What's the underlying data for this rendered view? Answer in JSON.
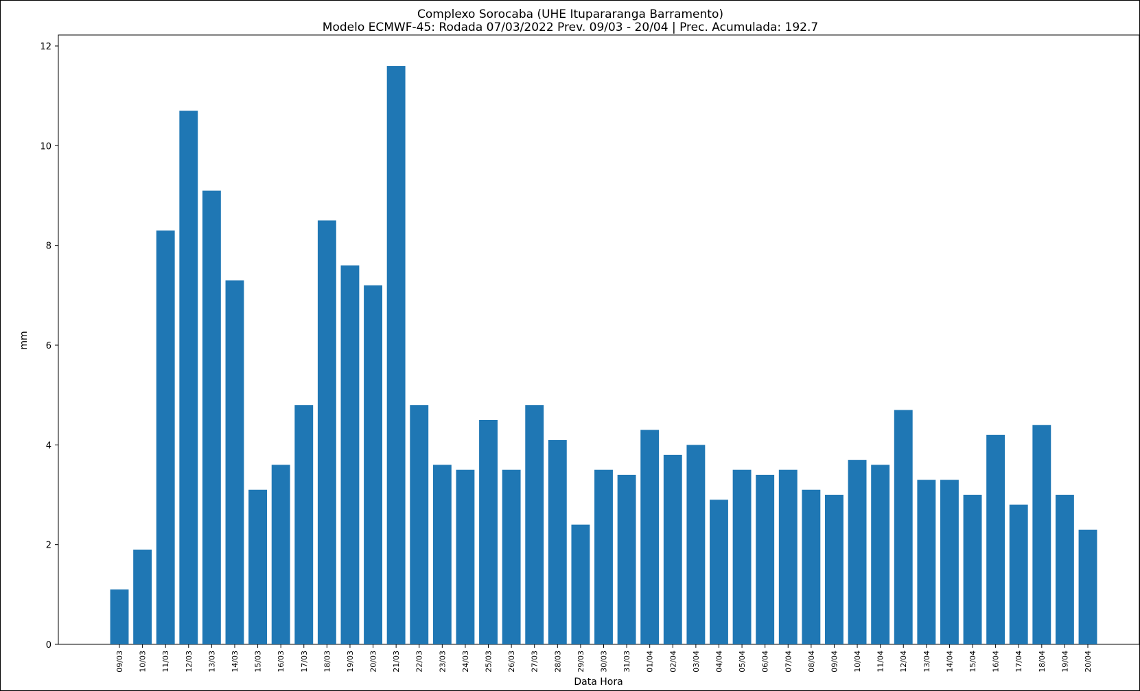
{
  "chart_data": {
    "type": "bar",
    "title": "Complexo Sorocaba (UHE Itupararanga Barramento)",
    "subtitle": "Modelo ECMWF-45: Rodada 07/03/2022 Prev. 09/03 - 20/04 | Prec. Acumulada: 192.7",
    "xlabel": "Data Hora",
    "ylabel": "mm",
    "ylim": [
      0,
      12
    ],
    "yticks": [
      "0",
      "2",
      "4",
      "6",
      "8",
      "10",
      "12"
    ],
    "grid": false,
    "bar_color": "#1f77b4",
    "categories": [
      "09/03",
      "10/03",
      "11/03",
      "12/03",
      "13/03",
      "14/03",
      "15/03",
      "16/03",
      "17/03",
      "18/03",
      "19/03",
      "20/03",
      "21/03",
      "22/03",
      "23/03",
      "24/03",
      "25/03",
      "26/03",
      "27/03",
      "28/03",
      "29/03",
      "30/03",
      "31/03",
      "01/04",
      "02/04",
      "03/04",
      "04/04",
      "05/04",
      "06/04",
      "07/04",
      "08/04",
      "09/04",
      "10/04",
      "11/04",
      "12/04",
      "13/04",
      "14/04",
      "15/04",
      "16/04",
      "17/04",
      "18/04",
      "19/04",
      "20/04"
    ],
    "values": [
      1.1,
      1.9,
      8.3,
      10.7,
      9.1,
      7.3,
      3.1,
      3.6,
      4.8,
      8.5,
      7.6,
      7.2,
      11.6,
      4.8,
      3.6,
      3.5,
      4.5,
      3.5,
      4.8,
      4.1,
      2.4,
      3.5,
      3.4,
      4.3,
      3.8,
      4.0,
      2.9,
      3.5,
      3.4,
      3.5,
      3.1,
      3.0,
      3.7,
      3.6,
      4.7,
      3.3,
      3.3,
      3.0,
      4.2,
      2.8,
      4.4,
      3.0,
      2.3
    ]
  }
}
